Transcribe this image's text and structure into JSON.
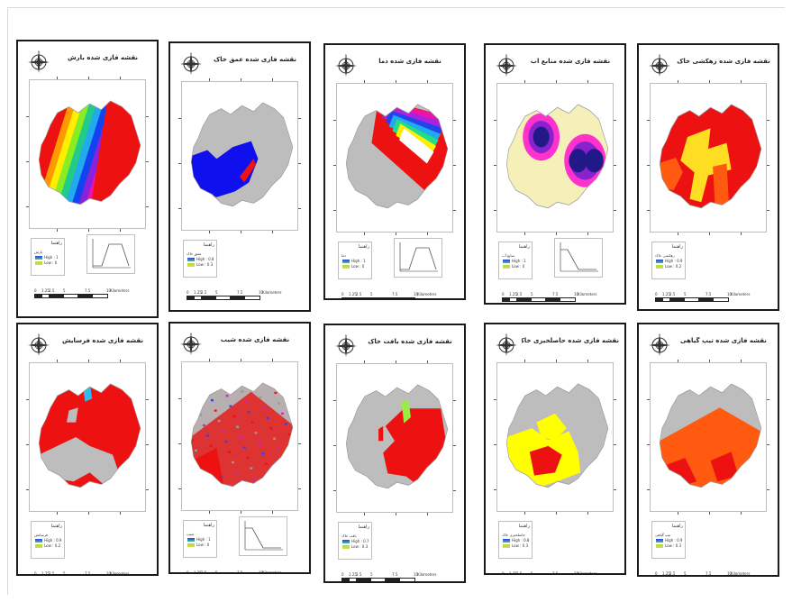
{
  "colors": {
    "red": "#ee1111",
    "grey": "#bdbdbd",
    "blue": "#1010ee",
    "yellow": "#ffff00",
    "orange": "#ff5a10",
    "pale": "#f4f0b8",
    "green": "#99ee44",
    "cyan": "#33bbee"
  },
  "panels": [
    {
      "title": "نقشه فازی شده بارش",
      "legend_title": "راهنما",
      "legend_name": "بارش",
      "high": "High : 1",
      "low": "Low : 0",
      "sw_high": "#3a3adf",
      "sw_low": "#ddd84a",
      "has_graph": true,
      "graph": "trap",
      "map": "rainfall"
    },
    {
      "title": "نقشه فازی شده عمق خاک",
      "legend_title": "راهنما",
      "legend_name": "عمق خاک",
      "high": "High : 0.8",
      "low": "Low : 0.3",
      "sw_high": "#3a3adf",
      "sw_low": "#ddd84a",
      "has_graph": false,
      "graph": "",
      "map": "soildepth"
    },
    {
      "title": "نقشه فازی شده دما",
      "legend_title": "راهنما",
      "legend_name": "دما",
      "high": "High : 1",
      "low": "Low : 0",
      "sw_high": "#3a3adf",
      "sw_low": "#ddd84a",
      "has_graph": true,
      "graph": "trap",
      "map": "temperature"
    },
    {
      "title": "نقشه فازی شده منابع آب",
      "legend_title": "راهنما",
      "legend_name": "منابع آب",
      "high": "High : 1",
      "low": "Low : 0",
      "sw_high": "#3a3adf",
      "sw_low": "#ddd84a",
      "has_graph": true,
      "graph": "dec",
      "map": "water"
    },
    {
      "title": "نقشه فازی شده زهکشی خاک",
      "legend_title": "راهنما",
      "legend_name": "زهکشی خاک",
      "high": "High : 0.9",
      "low": "Low : 0.2",
      "sw_high": "#3a3adf",
      "sw_low": "#ddd84a",
      "has_graph": false,
      "graph": "",
      "map": "drainage"
    },
    {
      "title": "نقشه فازی شده فرسایش",
      "legend_title": "راهنما",
      "legend_name": "فرسایش",
      "high": "High : 0.9",
      "low": "Low : 0.2",
      "sw_high": "#3a3adf",
      "sw_low": "#ddd84a",
      "has_graph": false,
      "graph": "",
      "map": "erosion"
    },
    {
      "title": "نقشه فازی شده شیب",
      "legend_title": "راهنما",
      "legend_name": "شیب",
      "high": "High : 1",
      "low": "Low : 0",
      "sw_high": "#3a3adf",
      "sw_low": "#ddd84a",
      "has_graph": true,
      "graph": "dec",
      "map": "slope"
    },
    {
      "title": "نقشه فازی شده بافت خاک",
      "legend_title": "راهنما",
      "legend_name": "بافت خاک",
      "high": "High : 0.7",
      "low": "Low : 0.3",
      "sw_high": "#3a3adf",
      "sw_low": "#ddd84a",
      "has_graph": false,
      "graph": "",
      "map": "texture"
    },
    {
      "title": "نقشه فازی شده حاصلخیزی خاک",
      "legend_title": "راهنما",
      "legend_name": "حاصلخیزی خاک",
      "high": "High : 0.8",
      "low": "Low : 0.3",
      "sw_high": "#3a3adf",
      "sw_low": "#ddd84a",
      "has_graph": false,
      "graph": "",
      "map": "fertility"
    },
    {
      "title": "نقشه فازی شده تیپ گیاهی",
      "legend_title": "راهنما",
      "legend_name": "تیپ گیاهی",
      "high": "High : 0.9",
      "low": "Low : 0.3",
      "sw_high": "#3a3adf",
      "sw_low": "#ddd84a",
      "has_graph": false,
      "graph": "",
      "map": "vegetation"
    }
  ],
  "scale_labels": [
    "0",
    "1.25",
    "2.5",
    "5",
    "7.5",
    "10"
  ],
  "scale_unit": "Kilometers"
}
